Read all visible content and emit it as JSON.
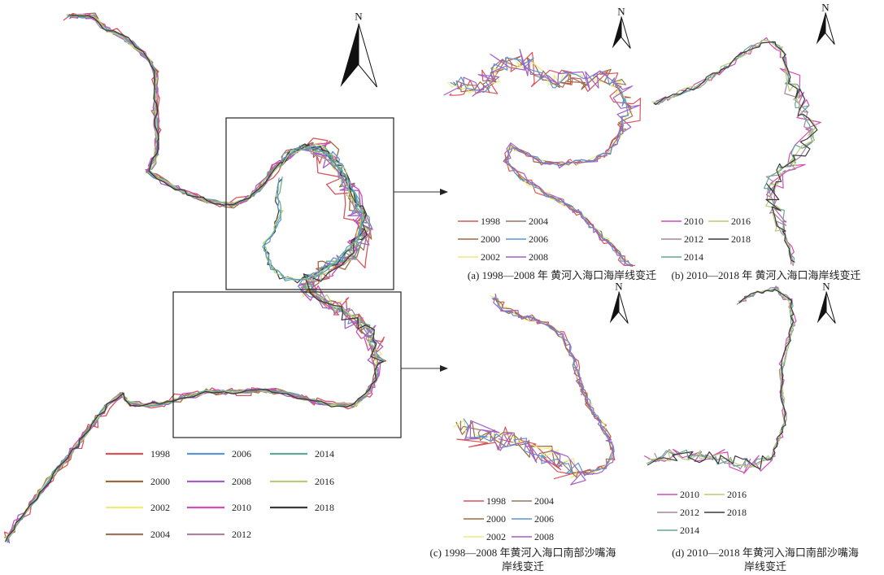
{
  "years": [
    "1998",
    "2000",
    "2002",
    "2004",
    "2006",
    "2008",
    "2010",
    "2012",
    "2014",
    "2016",
    "2018"
  ],
  "colors": {
    "1998": "#d9545a",
    "2000": "#a0683f",
    "2002": "#ecec7c",
    "2004": "#9a7560",
    "2006": "#5b95d6",
    "2008": "#a35fc6",
    "2010": "#d44cb8",
    "2012": "#a6869e",
    "2014": "#5fa897",
    "2016": "#b9cc7c",
    "2018": "#3a3a3a"
  },
  "north_label": "N",
  "main_legend": {
    "columns": [
      [
        "1998",
        "2000",
        "2002",
        "2004"
      ],
      [
        "2006",
        "2008",
        "2010",
        "2012"
      ],
      [
        "2014",
        "2016",
        "2018"
      ]
    ]
  },
  "panels": {
    "a": {
      "caption": "(a) 1998—2008 年 黄河入海口海岸线变迁",
      "legend": [
        [
          "1998",
          "2004"
        ],
        [
          "2000",
          "2006"
        ],
        [
          "2002",
          "2008"
        ]
      ]
    },
    "b": {
      "caption": "(b) 2010—2018 年 黄河入海口海岸线变迁",
      "legend": [
        [
          "2010",
          "2016"
        ],
        [
          "2012",
          "2018"
        ],
        [
          "2014"
        ]
      ]
    },
    "c": {
      "caption_line1": "(c) 1998—2008 年黄河入海口南部沙嘴海",
      "caption_line2": "岸线变迁",
      "legend": [
        [
          "1998",
          "2004"
        ],
        [
          "2000",
          "2006"
        ],
        [
          "2002",
          "2008"
        ]
      ]
    },
    "d": {
      "caption_line1": "(d) 2010—2018 年黄河入海口南部沙嘴海",
      "caption_line2": "岸线变迁",
      "legend": [
        [
          "2010",
          "2016"
        ],
        [
          "2012",
          "2018"
        ],
        [
          "2014"
        ]
      ]
    }
  }
}
